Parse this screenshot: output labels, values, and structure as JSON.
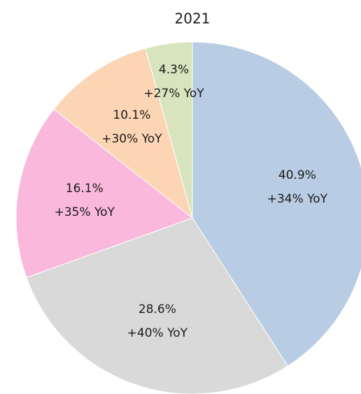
{
  "chart_data": {
    "type": "pie",
    "title": "2021",
    "values": [
      40.9,
      28.6,
      16.1,
      10.1,
      4.3
    ],
    "value_labels": [
      "40.9%",
      "28.6%",
      "16.1%",
      "10.1%",
      "4.3%"
    ],
    "annotations": [
      "+34% YoY",
      "+40% YoY",
      "+35% YoY",
      "+30% YoY",
      "+27% YoY"
    ],
    "colors": [
      "#b8cce4",
      "#d9d9d9",
      "#f9b8dc",
      "#fcd5b5",
      "#d7e4bd"
    ]
  }
}
